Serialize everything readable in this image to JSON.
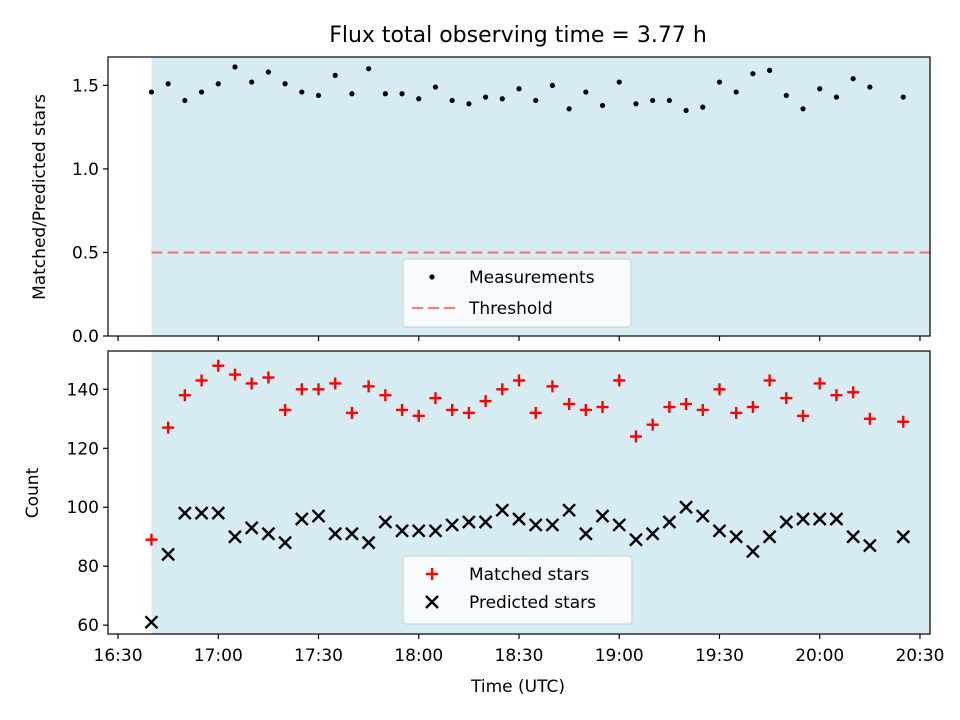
{
  "chart_data": {
    "type": "scatter",
    "title": "Flux total observing time = 3.77 h",
    "xlabel": "Time (UTC)",
    "xlim": [
      "16:27",
      "20:33"
    ],
    "x_ticks": [
      "16:30",
      "17:00",
      "17:30",
      "18:00",
      "18:30",
      "19:00",
      "19:30",
      "20:00",
      "20:30"
    ],
    "shaded_range": [
      "16:40",
      "20:55"
    ],
    "shade_color": "#add8e6",
    "times": [
      "16:40",
      "16:45",
      "16:50",
      "16:55",
      "17:00",
      "17:05",
      "17:10",
      "17:15",
      "17:20",
      "17:25",
      "17:30",
      "17:35",
      "17:40",
      "17:45",
      "17:50",
      "17:55",
      "18:00",
      "18:05",
      "18:10",
      "18:15",
      "18:20",
      "18:25",
      "18:30",
      "18:35",
      "18:40",
      "18:45",
      "18:50",
      "18:55",
      "19:00",
      "19:05",
      "19:10",
      "19:15",
      "19:20",
      "19:25",
      "19:30",
      "19:35",
      "19:40",
      "19:45",
      "19:50",
      "19:55",
      "20:00",
      "20:05",
      "20:10",
      "20:15",
      "20:25"
    ],
    "top": {
      "ylabel": "Matched/Predicted stars",
      "ylim": [
        0,
        1.67
      ],
      "y_ticks": [
        "0.0",
        "0.5",
        "1.0",
        "1.5"
      ],
      "threshold": 0.5,
      "threshold_color": "#f08080",
      "series": [
        {
          "name": "Measurements",
          "color": "#000000",
          "marker": "dot",
          "values": [
            1.46,
            1.51,
            1.41,
            1.46,
            1.51,
            1.61,
            1.52,
            1.58,
            1.51,
            1.46,
            1.44,
            1.56,
            1.45,
            1.6,
            1.45,
            1.45,
            1.42,
            1.49,
            1.41,
            1.39,
            1.43,
            1.42,
            1.48,
            1.41,
            1.5,
            1.36,
            1.46,
            1.38,
            1.52,
            1.39,
            1.41,
            1.41,
            1.35,
            1.37,
            1.52,
            1.46,
            1.57,
            1.59,
            1.44,
            1.36,
            1.48,
            1.43,
            1.54,
            1.49,
            1.43
          ]
        }
      ],
      "legend": [
        "Measurements",
        "Threshold"
      ]
    },
    "bottom": {
      "ylabel": "Count",
      "ylim": [
        57,
        153
      ],
      "y_ticks": [
        "60",
        "80",
        "100",
        "120",
        "140"
      ],
      "series": [
        {
          "name": "Matched stars",
          "color": "#ff0000",
          "marker": "plus",
          "values": [
            89,
            127,
            138,
            143,
            148,
            145,
            142,
            144,
            133,
            140,
            140,
            142,
            132,
            141,
            138,
            133,
            131,
            137,
            133,
            132,
            136,
            140,
            143,
            132,
            141,
            135,
            133,
            134,
            143,
            124,
            128,
            134,
            135,
            133,
            140,
            132,
            134,
            143,
            137,
            131,
            142,
            138,
            139,
            130,
            129
          ]
        },
        {
          "name": "Predicted stars",
          "color": "#000000",
          "marker": "x",
          "values": [
            61,
            84,
            98,
            98,
            98,
            90,
            93,
            91,
            88,
            96,
            97,
            91,
            91,
            88,
            95,
            92,
            92,
            92,
            94,
            95,
            95,
            99,
            96,
            94,
            94,
            99,
            91,
            97,
            94,
            89,
            91,
            95,
            100,
            97,
            92,
            90,
            85,
            90,
            95,
            96,
            96,
            96,
            90,
            87,
            90
          ]
        }
      ],
      "legend": [
        "Matched stars",
        "Predicted stars"
      ]
    }
  }
}
